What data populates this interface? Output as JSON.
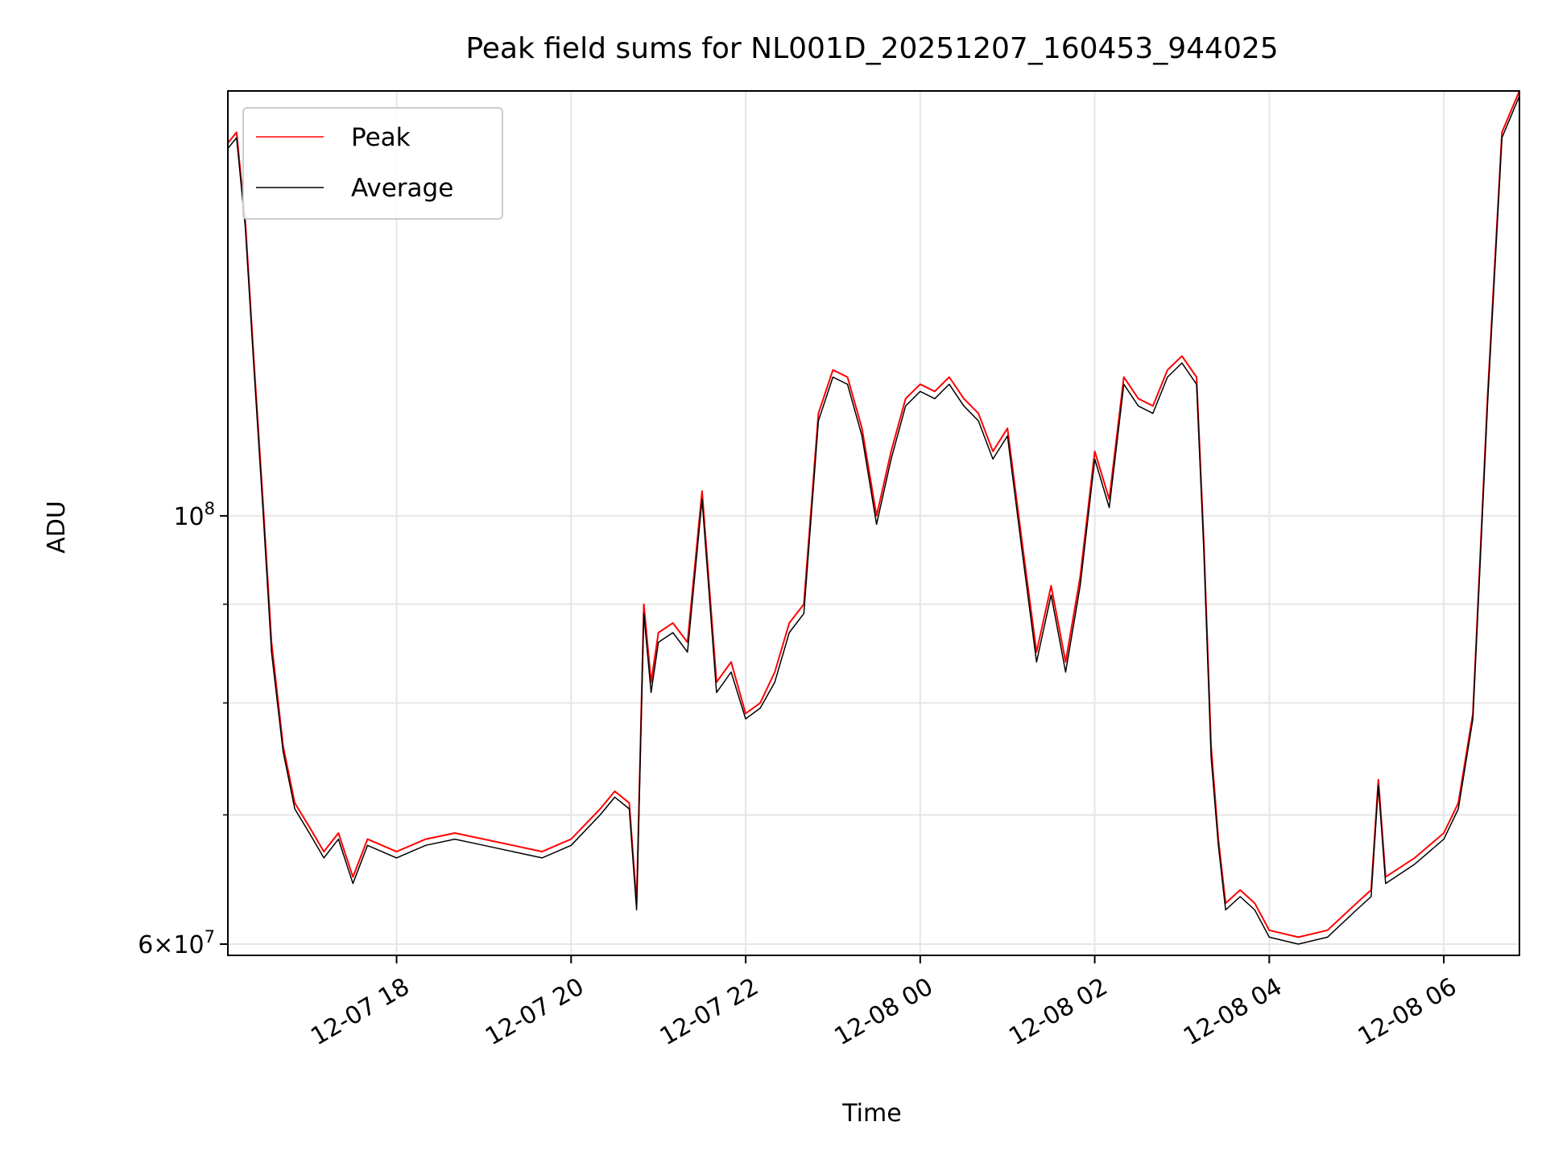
{
  "chart_data": {
    "type": "line",
    "title": "Peak field sums for NL001D_20251207_160453_944025",
    "xlabel": "Time",
    "ylabel": "ADU",
    "y_scale": "log",
    "ylim": [
      59200000,
      166000000
    ],
    "xlim": [
      "2025-12-07 16:04",
      "2025-12-08 06:52"
    ],
    "grid": true,
    "legend_position": "upper left",
    "x_ticks": [
      {
        "t": "2025-12-07 18:00",
        "label": "12-07 18"
      },
      {
        "t": "2025-12-07 20:00",
        "label": "12-07 20"
      },
      {
        "t": "2025-12-07 22:00",
        "label": "12-07 22"
      },
      {
        "t": "2025-12-08 00:00",
        "label": "12-08 00"
      },
      {
        "t": "2025-12-08 02:00",
        "label": "12-08 02"
      },
      {
        "t": "2025-12-08 04:00",
        "label": "12-08 04"
      },
      {
        "t": "2025-12-08 06:00",
        "label": "12-08 06"
      }
    ],
    "y_major_ticks": [
      {
        "value": 100000000,
        "base": "10",
        "exp": "8",
        "mant": ""
      },
      {
        "value": 60000000,
        "base": "10",
        "exp": "7",
        "mant": "6"
      }
    ],
    "y_minor_ticks": [
      70000000,
      80000000,
      90000000
    ],
    "series": [
      {
        "name": "Peak",
        "color": "#ff0000",
        "x": [
          "2025-12-07 16:04",
          "2025-12-07 16:10",
          "2025-12-07 16:16",
          "2025-12-07 16:22",
          "2025-12-07 16:28",
          "2025-12-07 16:34",
          "2025-12-07 16:42",
          "2025-12-07 16:50",
          "2025-12-07 17:00",
          "2025-12-07 17:10",
          "2025-12-07 17:20",
          "2025-12-07 17:30",
          "2025-12-07 17:40",
          "2025-12-07 18:00",
          "2025-12-07 18:20",
          "2025-12-07 18:40",
          "2025-12-07 19:00",
          "2025-12-07 19:20",
          "2025-12-07 19:40",
          "2025-12-07 20:00",
          "2025-12-07 20:20",
          "2025-12-07 20:30",
          "2025-12-07 20:40",
          "2025-12-07 20:45",
          "2025-12-07 20:50",
          "2025-12-07 20:55",
          "2025-12-07 21:00",
          "2025-12-07 21:10",
          "2025-12-07 21:20",
          "2025-12-07 21:30",
          "2025-12-07 21:40",
          "2025-12-07 21:50",
          "2025-12-07 22:00",
          "2025-12-07 22:10",
          "2025-12-07 22:20",
          "2025-12-07 22:30",
          "2025-12-07 22:40",
          "2025-12-07 22:50",
          "2025-12-07 23:00",
          "2025-12-07 23:10",
          "2025-12-07 23:20",
          "2025-12-07 23:30",
          "2025-12-07 23:40",
          "2025-12-07 23:50",
          "2025-12-08 00:00",
          "2025-12-08 00:10",
          "2025-12-08 00:20",
          "2025-12-08 00:30",
          "2025-12-08 00:40",
          "2025-12-08 00:50",
          "2025-12-08 01:00",
          "2025-12-08 01:10",
          "2025-12-08 01:20",
          "2025-12-08 01:30",
          "2025-12-08 01:40",
          "2025-12-08 01:50",
          "2025-12-08 02:00",
          "2025-12-08 02:10",
          "2025-12-08 02:20",
          "2025-12-08 02:30",
          "2025-12-08 02:40",
          "2025-12-08 02:50",
          "2025-12-08 03:00",
          "2025-12-08 03:10",
          "2025-12-08 03:15",
          "2025-12-08 03:20",
          "2025-12-08 03:25",
          "2025-12-08 03:30",
          "2025-12-08 03:40",
          "2025-12-08 03:50",
          "2025-12-08 04:00",
          "2025-12-08 04:20",
          "2025-12-08 04:40",
          "2025-12-08 05:00",
          "2025-12-08 05:10",
          "2025-12-08 05:15",
          "2025-12-08 05:20",
          "2025-12-08 05:40",
          "2025-12-08 06:00",
          "2025-12-08 06:10",
          "2025-12-08 06:20",
          "2025-12-08 06:30",
          "2025-12-08 06:40",
          "2025-12-08 06:52"
        ],
        "values": [
          156000000,
          158000000,
          142000000,
          120000000,
          102000000,
          86000000,
          76000000,
          71000000,
          69000000,
          67000000,
          68500000,
          65000000,
          68000000,
          67000000,
          68000000,
          68500000,
          68000000,
          67500000,
          67000000,
          68000000,
          70500000,
          72000000,
          71000000,
          63000000,
          90000000,
          82000000,
          87000000,
          88000000,
          86000000,
          103000000,
          82000000,
          84000000,
          79000000,
          80000000,
          83000000,
          88000000,
          90000000,
          113000000,
          119000000,
          118000000,
          111000000,
          100000000,
          108000000,
          115000000,
          117000000,
          116000000,
          118000000,
          115000000,
          113000000,
          108000000,
          111000000,
          97000000,
          85000000,
          92000000,
          84000000,
          93000000,
          108000000,
          102000000,
          118000000,
          115000000,
          114000000,
          119000000,
          121000000,
          118000000,
          97000000,
          76000000,
          68000000,
          63000000,
          64000000,
          63000000,
          61000000,
          60500000,
          61000000,
          63000000,
          64000000,
          73000000,
          65000000,
          66500000,
          68500000,
          71000000,
          79000000,
          115000000,
          158000000,
          166000000
        ]
      },
      {
        "name": "Average",
        "color": "#000000",
        "x": [
          "2025-12-07 16:04",
          "2025-12-07 16:10",
          "2025-12-07 16:16",
          "2025-12-07 16:22",
          "2025-12-07 16:28",
          "2025-12-07 16:34",
          "2025-12-07 16:42",
          "2025-12-07 16:50",
          "2025-12-07 17:00",
          "2025-12-07 17:10",
          "2025-12-07 17:20",
          "2025-12-07 17:30",
          "2025-12-07 17:40",
          "2025-12-07 18:00",
          "2025-12-07 18:20",
          "2025-12-07 18:40",
          "2025-12-07 19:00",
          "2025-12-07 19:20",
          "2025-12-07 19:40",
          "2025-12-07 20:00",
          "2025-12-07 20:20",
          "2025-12-07 20:30",
          "2025-12-07 20:40",
          "2025-12-07 20:45",
          "2025-12-07 20:50",
          "2025-12-07 20:55",
          "2025-12-07 21:00",
          "2025-12-07 21:10",
          "2025-12-07 21:20",
          "2025-12-07 21:30",
          "2025-12-07 21:40",
          "2025-12-07 21:50",
          "2025-12-07 22:00",
          "2025-12-07 22:10",
          "2025-12-07 22:20",
          "2025-12-07 22:30",
          "2025-12-07 22:40",
          "2025-12-07 22:50",
          "2025-12-07 23:00",
          "2025-12-07 23:10",
          "2025-12-07 23:20",
          "2025-12-07 23:30",
          "2025-12-07 23:40",
          "2025-12-07 23:50",
          "2025-12-08 00:00",
          "2025-12-08 00:10",
          "2025-12-08 00:20",
          "2025-12-08 00:30",
          "2025-12-08 00:40",
          "2025-12-08 00:50",
          "2025-12-08 01:00",
          "2025-12-08 01:10",
          "2025-12-08 01:20",
          "2025-12-08 01:30",
          "2025-12-08 01:40",
          "2025-12-08 01:50",
          "2025-12-08 02:00",
          "2025-12-08 02:10",
          "2025-12-08 02:20",
          "2025-12-08 02:30",
          "2025-12-08 02:40",
          "2025-12-08 02:50",
          "2025-12-08 03:00",
          "2025-12-08 03:10",
          "2025-12-08 03:15",
          "2025-12-08 03:20",
          "2025-12-08 03:25",
          "2025-12-08 03:30",
          "2025-12-08 03:40",
          "2025-12-08 03:50",
          "2025-12-08 04:00",
          "2025-12-08 04:20",
          "2025-12-08 04:40",
          "2025-12-08 05:00",
          "2025-12-08 05:10",
          "2025-12-08 05:15",
          "2025-12-08 05:20",
          "2025-12-08 05:40",
          "2025-12-08 06:00",
          "2025-12-08 06:10",
          "2025-12-08 06:20",
          "2025-12-08 06:30",
          "2025-12-08 06:40",
          "2025-12-08 06:52"
        ],
        "values": [
          155000000,
          157000000,
          141000000,
          119000000,
          101000000,
          85000000,
          75500000,
          70500000,
          68500000,
          66500000,
          68000000,
          64500000,
          67500000,
          66500000,
          67500000,
          68000000,
          67500000,
          67000000,
          66500000,
          67500000,
          70000000,
          71500000,
          70500000,
          62500000,
          89000000,
          81000000,
          86000000,
          87000000,
          85000000,
          102000000,
          81000000,
          83000000,
          78500000,
          79500000,
          82000000,
          87000000,
          89000000,
          112000000,
          118000000,
          117000000,
          110000000,
          99000000,
          107000000,
          114000000,
          116000000,
          115000000,
          117000000,
          114000000,
          112000000,
          107000000,
          110000000,
          96000000,
          84000000,
          91000000,
          83000000,
          92000000,
          107000000,
          101000000,
          117000000,
          114000000,
          113000000,
          118000000,
          120000000,
          117000000,
          96000000,
          75000000,
          67500000,
          62500000,
          63500000,
          62500000,
          60500000,
          60000000,
          60500000,
          62500000,
          63500000,
          72500000,
          64500000,
          66000000,
          68000000,
          70500000,
          78500000,
          114000000,
          157000000,
          165000000
        ]
      }
    ]
  }
}
